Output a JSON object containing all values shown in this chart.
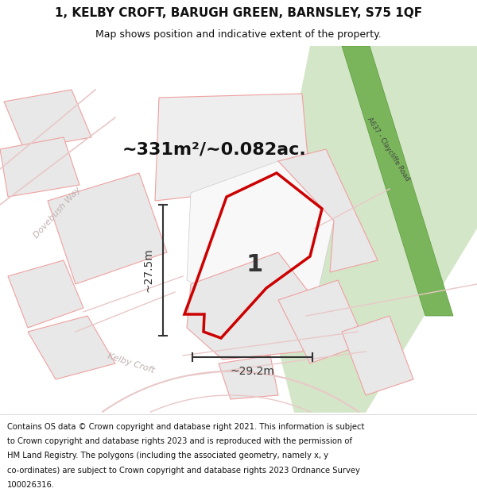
{
  "title_line1": "1, KELBY CROFT, BARUGH GREEN, BARNSLEY, S75 1QF",
  "title_line2": "Map shows position and indicative extent of the property.",
  "area_text": "~331m²/~0.082ac.",
  "plot_label": "1",
  "dim_vertical": "~27.5m",
  "dim_horizontal": "~29.2m",
  "footer_lines": [
    "Contains OS data © Crown copyright and database right 2021. This information is subject",
    "to Crown copyright and database rights 2023 and is reproduced with the permission of",
    "HM Land Registry. The polygons (including the associated geometry, namely x, y",
    "co-ordinates) are subject to Crown copyright and database rights 2023 Ordnance Survey",
    "100026316."
  ],
  "map_bg": "#ffffff",
  "green_area_color": "#d4e6c8",
  "green_stripe_color": "#7ab55c",
  "green_stripe_edge": "#5a9a3c",
  "building_fill": "#e8e8e8",
  "building_outline": "#f0a0a0",
  "road_outline_color": "#e8c8c8",
  "red_polygon_color": "#cc0000",
  "dim_color": "#333333",
  "street_label_color": "#c0b0b0",
  "road_label_color": "#444444",
  "title_color": "#111111",
  "footer_color": "#111111",
  "area_color": "#111111",
  "title_fontsize": 11,
  "subtitle_fontsize": 9,
  "area_fontsize": 16,
  "plot_label_fontsize": 22,
  "dim_fontsize": 10,
  "street_fontsize": 8,
  "footer_fontsize": 7.2,
  "road_label_fontsize": 6
}
